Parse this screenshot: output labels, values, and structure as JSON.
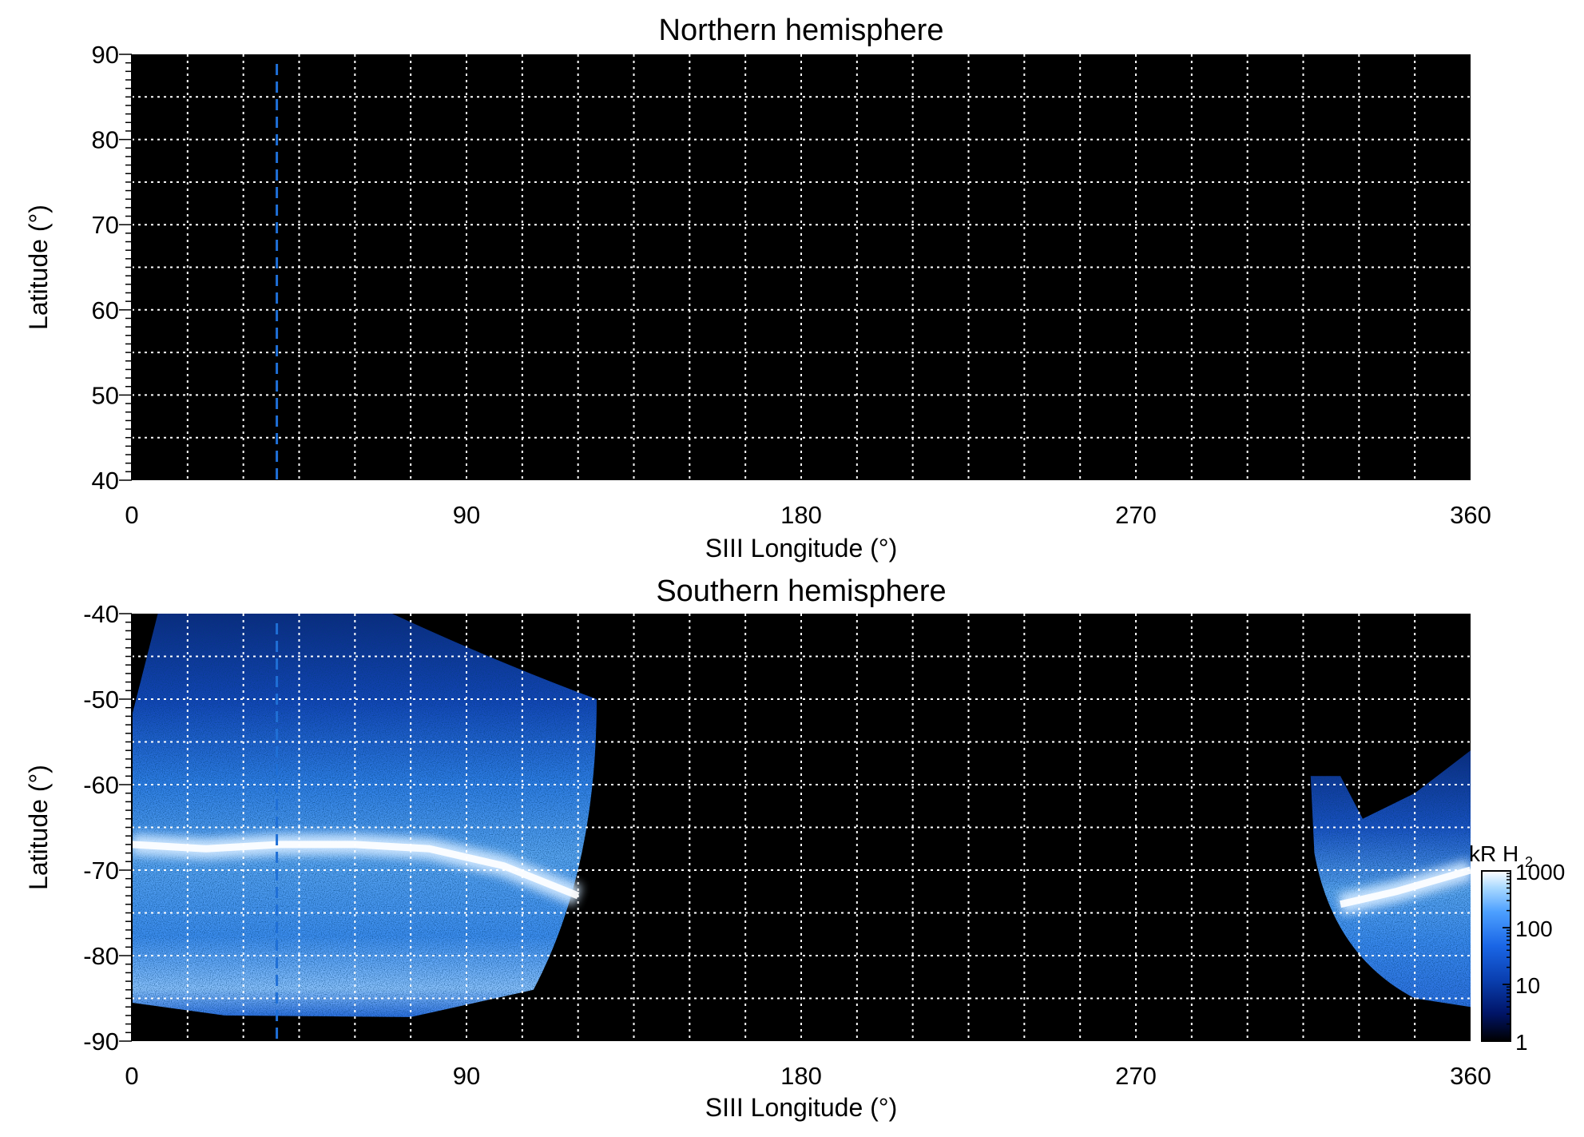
{
  "chart_data": [
    {
      "type": "heatmap",
      "title": "Northern hemisphere",
      "xlabel": "SIII Longitude (°)",
      "ylabel": "Latitude (°)",
      "xlim": [
        0,
        360
      ],
      "ylim": [
        40,
        90
      ],
      "x_ticks": [
        "0",
        "90",
        "180",
        "270",
        "360"
      ],
      "y_ticks": [
        "40",
        "50",
        "60",
        "70",
        "80",
        "90"
      ],
      "grid": true,
      "grid_style": "white-dotted",
      "background": "#000000",
      "marker_longitude": 39,
      "marker_color": "#1f6fd6",
      "emission": "none"
    },
    {
      "type": "heatmap",
      "title": "Southern hemisphere",
      "xlabel": "SIII Longitude (°)",
      "ylabel": "Latitude (°)",
      "xlim": [
        0,
        360
      ],
      "ylim": [
        -90,
        -40
      ],
      "x_ticks": [
        "0",
        "90",
        "180",
        "270",
        "360"
      ],
      "y_ticks": [
        "-40",
        "-50",
        "-60",
        "-70",
        "-80",
        "-90"
      ],
      "grid": true,
      "grid_style": "white-dotted",
      "background": "#000000",
      "marker_longitude": 39,
      "marker_color": "#1f6fd6",
      "regions": [
        {
          "lon_start": 0,
          "lon_end": 125,
          "lat_top": -40,
          "lat_bottom": -87
        },
        {
          "lon_start": 316,
          "lon_end": 360,
          "lat_top": -56,
          "lat_bottom": -86
        }
      ],
      "main_oval": [
        {
          "lon": 0,
          "lat": -67
        },
        {
          "lon": 20,
          "lat": -67.5
        },
        {
          "lon": 40,
          "lat": -67
        },
        {
          "lon": 60,
          "lat": -67
        },
        {
          "lon": 80,
          "lat": -67.5
        },
        {
          "lon": 100,
          "lat": -69.5
        },
        {
          "lon": 120,
          "lat": -73
        },
        {
          "lon": 325,
          "lat": -74
        },
        {
          "lon": 340,
          "lat": -72.5
        },
        {
          "lon": 360,
          "lat": -70
        }
      ],
      "colorbar": {
        "label": "kR H",
        "label_subscript": "2",
        "scale": "log",
        "range": [
          1,
          1000
        ],
        "ticks": [
          "1",
          "10",
          "100",
          "1000"
        ],
        "colors": [
          "#000000",
          "#001466",
          "#0a3fb0",
          "#1a66e6",
          "#4da0ff",
          "#a8d8ff",
          "#ffffff"
        ]
      }
    }
  ]
}
